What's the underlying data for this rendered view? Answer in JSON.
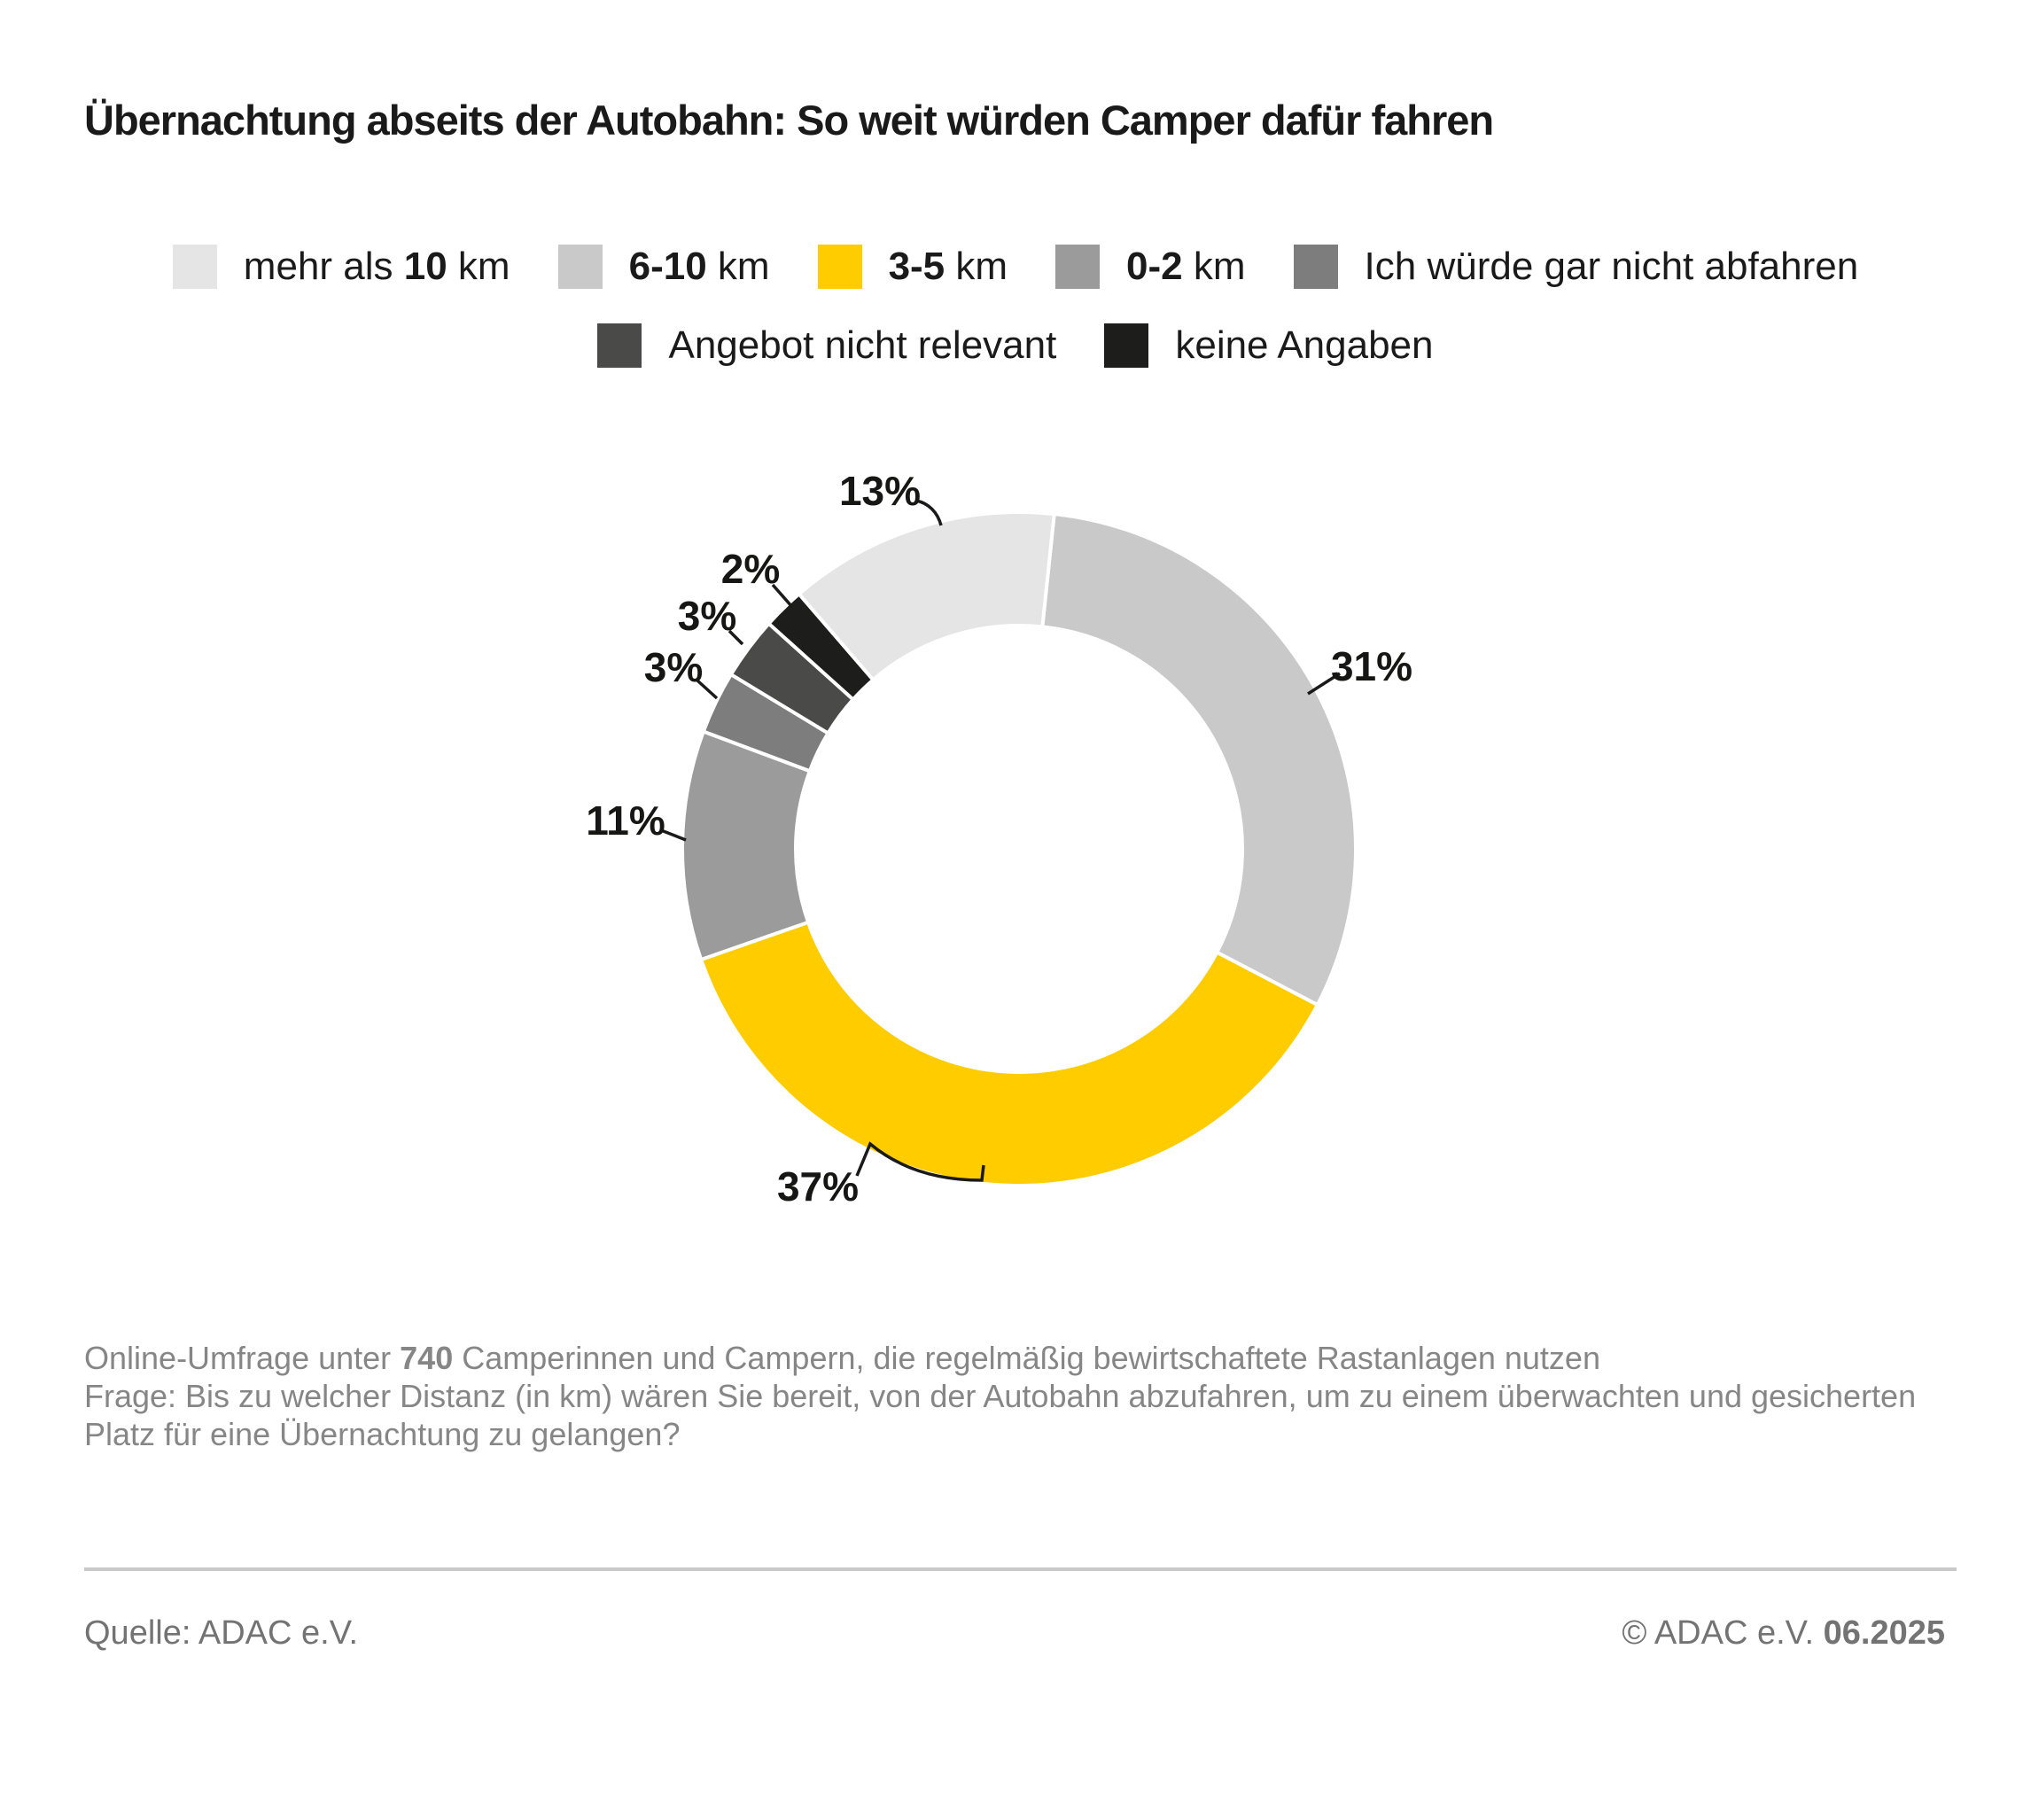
{
  "title": "Übernachtung abseits der Autobahn: So weit würden Camper dafür fahren",
  "chart_data": {
    "type": "pie",
    "subtype": "donut",
    "unit": "%",
    "title": "Übernachtung abseits der Autobahn: So weit würden Camper dafür fahren",
    "legend_position": "top-center",
    "rotation_deg": 6,
    "slices": [
      {
        "legend_label": "mehr als 10 km",
        "label_parts": [
          {
            "t": "mehr als ",
            "b": 0
          },
          {
            "t": "10",
            "b": 1
          },
          {
            "t": " km",
            "b": 0
          }
        ],
        "value": 13,
        "value_label": "13%",
        "color": "#e5e5e5"
      },
      {
        "legend_label": "6-10 km",
        "label_parts": [
          {
            "t": "6-10",
            "b": 1
          },
          {
            "t": " km",
            "b": 0
          }
        ],
        "value": 31,
        "value_label": "31%",
        "color": "#c9c9c9"
      },
      {
        "legend_label": "3-5 km",
        "label_parts": [
          {
            "t": "3-5",
            "b": 1
          },
          {
            "t": " km",
            "b": 0
          }
        ],
        "value": 37,
        "value_label": "37%",
        "color": "#ffcc00"
      },
      {
        "legend_label": "0-2 km",
        "label_parts": [
          {
            "t": "0-2",
            "b": 1
          },
          {
            "t": " km",
            "b": 0
          }
        ],
        "value": 11,
        "value_label": "11%",
        "color": "#9b9b9b"
      },
      {
        "legend_label": "Ich würde gar nicht abfahren",
        "label_parts": [
          {
            "t": "Ich würde gar nicht abfahren",
            "b": 0
          }
        ],
        "value": 3,
        "value_label": "3%",
        "color": "#7d7d7d"
      },
      {
        "legend_label": "Angebot nicht relevant",
        "label_parts": [
          {
            "t": "Angebot nicht relevant",
            "b": 0
          }
        ],
        "value": 3,
        "value_label": "3%",
        "color": "#4a4a49"
      },
      {
        "legend_label": "keine Angaben",
        "label_parts": [
          {
            "t": "keine Angaben",
            "b": 0
          }
        ],
        "value": 2,
        "value_label": "2%",
        "color": "#1d1d1b"
      }
    ],
    "legend_rows": [
      [
        0,
        1,
        2,
        3,
        4
      ],
      [
        5,
        6
      ]
    ],
    "draw_order_clockwise_from_top": [
      1,
      2,
      3,
      4,
      5,
      6,
      0
    ]
  },
  "footnote": {
    "line1_pre": "Online-Umfrage unter ",
    "line1_bold": "740",
    "line1_post": " Camperinnen und Campern, die regelmäßig bewirtschaftete Rastanlagen nutzen",
    "question": "Frage: Bis zu welcher Distanz (in km) wären Sie bereit, von der Autobahn abzufahren, um zu einem überwachten und gesicherten Platz für eine Übernachtung zu gelangen?"
  },
  "source": {
    "left": "Quelle: ADAC e.V.",
    "right_prefix": "© ADAC e.V. ",
    "right_bold": "06.2025"
  }
}
